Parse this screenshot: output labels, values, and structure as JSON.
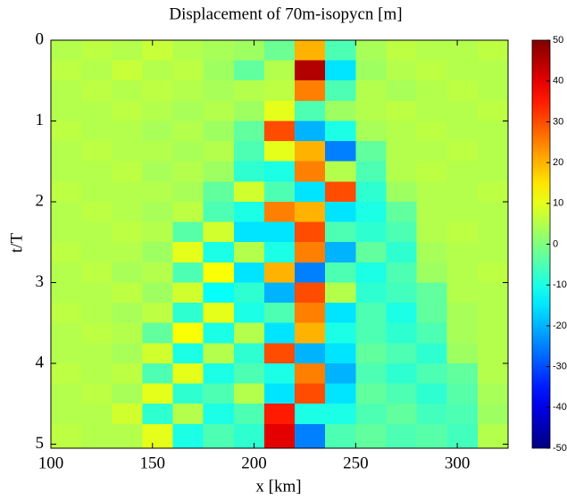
{
  "chart_data": {
    "type": "heatmap",
    "title": "Displacement of 70m-isopycn [m]",
    "x_label": "x [km]",
    "y_label": "t/T",
    "colormap": "jet",
    "xlim": [
      100,
      325
    ],
    "ylim": [
      0,
      5.05
    ],
    "y_inverted": true,
    "xticks": [
      100,
      150,
      200,
      250,
      300
    ],
    "yticks": [
      0,
      1,
      2,
      3,
      4,
      5
    ],
    "xbins": [
      100,
      115,
      130,
      145,
      160,
      175,
      190,
      205,
      220,
      235,
      250,
      265,
      280,
      295,
      310,
      325
    ],
    "ybins": [
      0,
      0.25,
      0.5,
      0.75,
      1,
      1.25,
      1.5,
      1.75,
      2,
      2.25,
      2.5,
      2.75,
      3,
      3.25,
      3.5,
      3.75,
      4,
      4.25,
      4.5,
      4.75,
      5.05
    ],
    "z": [
      [
        5,
        6,
        5,
        7,
        5,
        4,
        3,
        -2,
        20,
        -5,
        4,
        6,
        5,
        5,
        6
      ],
      [
        6,
        5,
        7,
        5,
        6,
        3,
        -3,
        5,
        45,
        -15,
        3,
        5,
        6,
        5,
        5
      ],
      [
        5,
        6,
        5,
        6,
        5,
        4,
        5,
        6,
        25,
        -5,
        5,
        4,
        5,
        6,
        5
      ],
      [
        5,
        5,
        6,
        5,
        4,
        5,
        3,
        10,
        -5,
        3,
        5,
        6,
        5,
        5,
        6
      ],
      [
        6,
        5,
        5,
        4,
        5,
        3,
        -3,
        30,
        -20,
        -10,
        4,
        5,
        6,
        5,
        5
      ],
      [
        5,
        6,
        5,
        5,
        4,
        5,
        -5,
        10,
        20,
        -25,
        -3,
        5,
        5,
        6,
        5
      ],
      [
        5,
        5,
        6,
        4,
        5,
        3,
        -8,
        -10,
        25,
        5,
        -5,
        5,
        6,
        5,
        5
      ],
      [
        6,
        5,
        5,
        5,
        4,
        -3,
        8,
        -5,
        -15,
        30,
        -8,
        3,
        5,
        5,
        6
      ],
      [
        5,
        6,
        5,
        4,
        6,
        -5,
        -10,
        25,
        20,
        -15,
        -10,
        -3,
        5,
        5,
        5
      ],
      [
        5,
        5,
        6,
        5,
        -4,
        8,
        -15,
        -15,
        30,
        -5,
        -8,
        -5,
        5,
        6,
        5
      ],
      [
        6,
        5,
        5,
        3,
        10,
        -10,
        5,
        -10,
        25,
        -20,
        -3,
        -8,
        4,
        5,
        5
      ],
      [
        5,
        6,
        4,
        5,
        -5,
        12,
        -15,
        20,
        -25,
        -5,
        -10,
        -5,
        3,
        5,
        6
      ],
      [
        5,
        5,
        6,
        3,
        8,
        -12,
        -8,
        -20,
        30,
        5,
        -8,
        -6,
        -3,
        5,
        5
      ],
      [
        6,
        5,
        4,
        6,
        -8,
        10,
        -10,
        -5,
        25,
        -15,
        -5,
        -10,
        -3,
        4,
        5
      ],
      [
        5,
        6,
        5,
        -3,
        12,
        -10,
        5,
        -15,
        20,
        -10,
        -5,
        -8,
        -5,
        4,
        5
      ],
      [
        5,
        5,
        4,
        8,
        -10,
        5,
        -8,
        30,
        -20,
        -15,
        -3,
        -5,
        -8,
        3,
        5
      ],
      [
        6,
        5,
        6,
        -5,
        10,
        -10,
        -5,
        -10,
        25,
        -20,
        -5,
        -8,
        -5,
        -3,
        5
      ],
      [
        5,
        6,
        4,
        10,
        -8,
        -5,
        5,
        -15,
        30,
        -15,
        -3,
        -5,
        -8,
        -4,
        4
      ],
      [
        5,
        5,
        8,
        -8,
        5,
        -10,
        -5,
        35,
        -10,
        -10,
        -5,
        -3,
        -6,
        -5,
        3
      ],
      [
        6,
        5,
        5,
        10,
        -10,
        -5,
        -8,
        40,
        -25,
        -5,
        -3,
        -5,
        -4,
        -6,
        5
      ]
    ],
    "clim": [
      -50,
      50
    ],
    "cticks": [
      -50,
      -40,
      -30,
      -20,
      -10,
      0,
      10,
      20,
      30,
      40,
      50
    ]
  }
}
